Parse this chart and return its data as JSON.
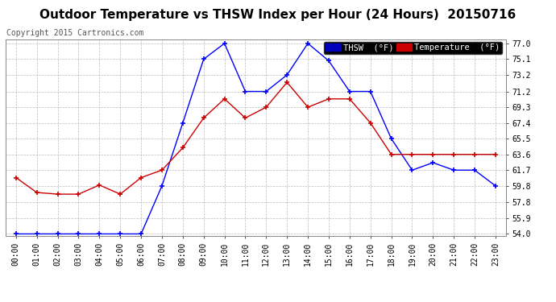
{
  "title": "Outdoor Temperature vs THSW Index per Hour (24 Hours)  20150716",
  "copyright": "Copyright 2015 Cartronics.com",
  "hours": [
    "00:00",
    "01:00",
    "02:00",
    "03:00",
    "04:00",
    "05:00",
    "06:00",
    "07:00",
    "08:00",
    "09:00",
    "10:00",
    "11:00",
    "12:00",
    "13:00",
    "14:00",
    "15:00",
    "16:00",
    "17:00",
    "18:00",
    "19:00",
    "20:00",
    "21:00",
    "22:00",
    "23:00"
  ],
  "thsw": [
    54.0,
    54.0,
    54.0,
    54.0,
    54.0,
    54.0,
    54.0,
    59.8,
    67.4,
    75.1,
    77.0,
    71.2,
    71.2,
    73.2,
    77.0,
    74.9,
    71.2,
    71.2,
    65.5,
    61.7,
    62.6,
    61.7,
    61.7,
    59.8
  ],
  "temperature": [
    60.8,
    59.0,
    58.8,
    58.8,
    59.9,
    58.8,
    60.8,
    61.7,
    64.4,
    68.0,
    70.3,
    68.0,
    69.3,
    72.3,
    69.3,
    70.3,
    70.3,
    67.4,
    63.6,
    63.6,
    63.6,
    63.6,
    63.6,
    63.6
  ],
  "ylim_min": 54.0,
  "ylim_max": 77.0,
  "yticks": [
    54.0,
    55.9,
    57.8,
    59.8,
    61.7,
    63.6,
    65.5,
    67.4,
    69.3,
    71.2,
    73.2,
    75.1,
    77.0
  ],
  "thsw_color": "#0000ff",
  "temp_color": "#cc0000",
  "background_color": "#ffffff",
  "plot_bg_color": "#ffffff",
  "grid_color": "#aaaaaa",
  "title_fontsize": 11,
  "title_fontweight": "bold",
  "copyright_fontsize": 7,
  "legend_thsw_label": "THSW  (°F)",
  "legend_temp_label": "Temperature  (°F)",
  "legend_thsw_bg": "#0000bb",
  "legend_temp_bg": "#cc0000"
}
